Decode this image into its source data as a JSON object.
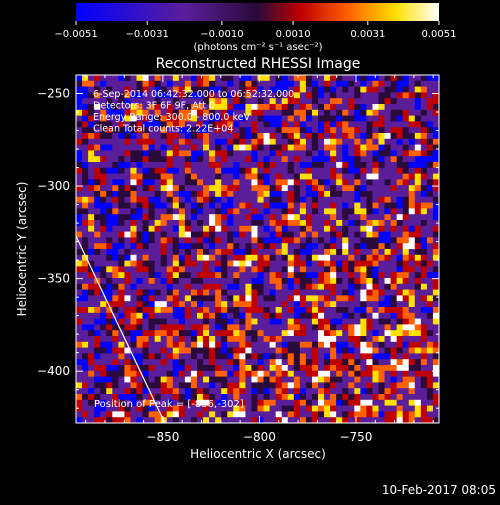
{
  "chart_data": {
    "type": "heatmap",
    "title": "Reconstructed RHESSI Image",
    "xlabel": "Heliocentric X (arcsec)",
    "ylabel": "Heliocentric Y (arcsec)",
    "xlim": [
      -895,
      -707
    ],
    "ylim": [
      -428,
      -240
    ],
    "x_ticks": [
      -850,
      -800,
      -750
    ],
    "y_ticks": [
      -250,
      -300,
      -350,
      -400
    ],
    "colorbar": {
      "range": [
        -0.0051,
        0.0051
      ],
      "tick_values": [
        -0.0051,
        -0.0031,
        -0.001,
        0.001,
        0.0031,
        0.0051
      ],
      "tick_labels": [
        "−0.0051",
        "−0.0031",
        "−0.0010",
        "0.0010",
        "0.0031",
        "0.0051"
      ],
      "unit_label": "(photons cm⁻² s⁻¹ asec⁻²)"
    },
    "info_lines": [
      "6-Sep-2014 06:42:32.000 to 06:52:32.000",
      "Detectors: 3F 6F 9F, Att 0",
      "Energy Range: 300.0 - 800.0 keV",
      "Clean     Total counts: 2.22E+04"
    ],
    "peak_label": "Position of Peak = [-896,-302]",
    "peak_position": [
      -896,
      -302
    ],
    "limb_line": {
      "x": [
        -895,
        -849
      ],
      "y": [
        -327,
        -428
      ]
    }
  },
  "footer": {
    "timestamp": "10-Feb-2017 08:05"
  },
  "colors": {
    "background": "#000000",
    "foreground": "#ffffff",
    "colormap": [
      "#0000ff",
      "#5a1e9a",
      "#2a0a3a",
      "#c00000",
      "#ff6000",
      "#ffe000",
      "#ffffff"
    ]
  }
}
